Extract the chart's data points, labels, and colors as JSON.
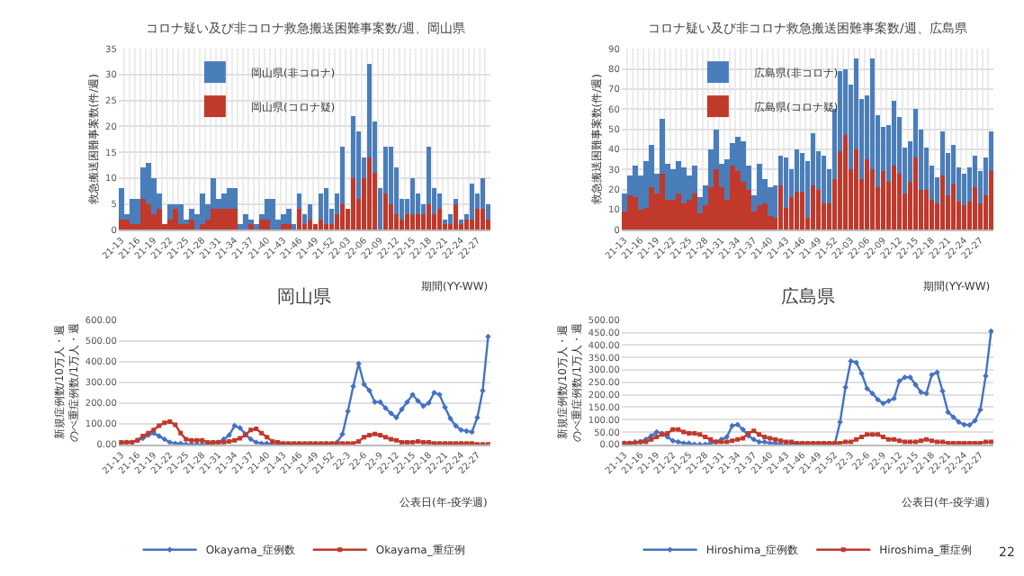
{
  "chart_data": [
    {
      "type": "bar",
      "title": "コロナ疑い及び非コロナ救急搬送困難事案数/週、岡山県",
      "xlabel": "期間(YY-WW)",
      "ylabel": "救急搬送困難事案数(件/週)",
      "stacked": true,
      "legend": "top left",
      "grid": true,
      "ylim": [
        0,
        35
      ],
      "yticks": [
        0,
        5,
        10,
        15,
        20,
        25,
        30,
        35
      ],
      "categories": [
        "21-13",
        null,
        null,
        "21-16",
        null,
        null,
        "21-19",
        null,
        null,
        "21-22",
        null,
        null,
        "21-25",
        null,
        null,
        "21-28",
        null,
        null,
        "21-31",
        null,
        null,
        "21-34",
        null,
        null,
        "21-37",
        null,
        null,
        "21-40",
        null,
        null,
        "21-43",
        null,
        null,
        "21-46",
        null,
        null,
        "21-49",
        null,
        null,
        "21-52",
        null,
        null,
        "22-03",
        null,
        null,
        "22-06",
        null,
        null,
        "22-09",
        null,
        null,
        "22-12",
        null,
        null,
        "22-15",
        null,
        null,
        "22-18",
        null,
        null,
        "22-21",
        null,
        null,
        "22-24",
        null,
        null,
        "22-27",
        null,
        null
      ],
      "series": [
        {
          "name": "岡山県(コロナ疑)",
          "color": "#c0392b",
          "values": [
            2,
            2,
            1,
            1,
            6,
            5,
            3,
            4,
            1,
            2,
            4,
            1,
            1,
            2,
            0,
            1,
            2,
            4,
            4,
            4,
            4,
            4,
            0,
            0,
            1,
            0,
            2,
            2,
            0,
            0,
            1,
            1,
            0,
            4,
            1,
            2,
            1,
            2,
            1,
            1,
            3,
            5,
            4,
            10,
            6,
            10,
            14,
            11,
            0,
            7,
            5,
            3,
            2,
            3,
            3,
            3,
            3,
            5,
            3,
            4,
            1,
            1,
            5,
            1,
            2,
            2,
            4,
            4,
            2
          ]
        },
        {
          "name": "岡山県(非コロナ)",
          "color": "#4a7ebb",
          "values": [
            6,
            1,
            5,
            5,
            6,
            8,
            7,
            3,
            0,
            3,
            1,
            4,
            1,
            2,
            3,
            6,
            3,
            6,
            2,
            3,
            4,
            4,
            1,
            3,
            1,
            1,
            1,
            4,
            6,
            2,
            2,
            3,
            1,
            3,
            2,
            3,
            0,
            5,
            7,
            3,
            4,
            11,
            0,
            12,
            13,
            4,
            18,
            10,
            8,
            9,
            11,
            9,
            4,
            3,
            7,
            4,
            2,
            11,
            5,
            3,
            1,
            2,
            1,
            1,
            1,
            7,
            3,
            6,
            3
          ]
        }
      ]
    },
    {
      "type": "bar",
      "title": "コロナ疑い及び非コロナ救急搬送困難事案数/週、広島県",
      "xlabel": "期間(YY-WW)",
      "ylabel": "救急搬送困難事案数(件/週)",
      "stacked": true,
      "legend": "top left",
      "grid": true,
      "ylim": [
        0,
        90
      ],
      "yticks": [
        0,
        10,
        20,
        30,
        40,
        50,
        60,
        70,
        80,
        90
      ],
      "categories": [
        "21-13",
        null,
        null,
        "21-16",
        null,
        null,
        "21-19",
        null,
        null,
        "21-22",
        null,
        null,
        "21-25",
        null,
        null,
        "21-28",
        null,
        null,
        "21-31",
        null,
        null,
        "21-34",
        null,
        null,
        "21-37",
        null,
        null,
        "21-40",
        null,
        null,
        "21-43",
        null,
        null,
        "21-46",
        null,
        null,
        "21-49",
        null,
        null,
        "21-52",
        null,
        null,
        "22-03",
        null,
        null,
        "22-06",
        null,
        null,
        "22-09",
        null,
        null,
        "22-12",
        null,
        null,
        "22-15",
        null,
        null,
        "22-18",
        null,
        null,
        "22-21",
        null,
        null,
        "22-24",
        null,
        null,
        "22-27",
        null,
        null
      ],
      "series": [
        {
          "name": "広島県(コロナ疑)",
          "color": "#c0392b",
          "values": [
            9,
            17,
            16,
            10,
            11,
            21,
            18,
            28,
            15,
            15,
            18,
            13,
            15,
            18,
            8,
            12,
            21,
            30,
            21,
            15,
            32,
            29,
            24,
            20,
            9,
            12,
            13,
            7,
            6,
            22,
            11,
            16,
            19,
            19,
            6,
            22,
            20,
            13,
            13,
            25,
            39,
            47,
            30,
            40,
            25,
            35,
            30,
            21,
            29,
            24,
            32,
            28,
            18,
            24,
            36,
            20,
            20,
            15,
            13,
            27,
            17,
            23,
            14,
            12,
            14,
            21,
            13,
            17,
            29
          ]
        },
        {
          "name": "広島県(非コロナ)",
          "color": "#4a7ebb",
          "values": [
            9,
            10,
            16,
            17,
            23,
            21,
            10,
            27,
            18,
            15,
            16,
            18,
            12,
            14,
            8,
            10,
            19,
            20,
            12,
            20,
            11,
            17,
            20,
            12,
            8,
            21,
            12,
            14,
            16,
            15,
            25,
            14,
            21,
            19,
            28,
            26,
            19,
            24,
            17,
            35,
            40,
            33,
            42,
            45,
            40,
            32,
            55,
            36,
            22,
            28,
            32,
            28,
            23,
            20,
            24,
            30,
            21,
            17,
            13,
            22,
            21,
            19,
            17,
            16,
            17,
            16,
            16,
            19,
            20
          ]
        }
      ]
    },
    {
      "type": "line",
      "title": "岡山県",
      "xlabel": "公表日(年-疫学週)",
      "ylabel": "新規症例数/10万人・週のべ重症例数/1万人・週",
      "legend": "bottom",
      "grid": "y",
      "ylim": [
        0,
        600
      ],
      "yticks": [
        {
          "value": 0,
          "label": "0.00"
        },
        {
          "value": 100,
          "label": "100.00"
        },
        {
          "value": 200,
          "label": "200.00"
        },
        {
          "value": 300,
          "label": "300.00"
        },
        {
          "value": 400,
          "label": "400.00"
        },
        {
          "value": 500,
          "label": "500.00"
        },
        {
          "value": 600,
          "label": "600.00"
        }
      ],
      "categories": [
        "21-13",
        null,
        null,
        "21-16",
        null,
        null,
        "21-19",
        null,
        null,
        "21-22",
        null,
        null,
        "21-25",
        null,
        null,
        "21-28",
        null,
        null,
        "21-31",
        null,
        null,
        "21-34",
        null,
        null,
        "21-37",
        null,
        null,
        "21-40",
        null,
        null,
        "21-43",
        null,
        null,
        "21-46",
        null,
        null,
        "21-49",
        null,
        null,
        "21-52",
        null,
        null,
        "22-3",
        null,
        null,
        "22-6",
        null,
        null,
        "22-9",
        null,
        null,
        "22-12",
        null,
        null,
        "22-15",
        null,
        null,
        "22-18",
        null,
        null,
        "22-21",
        null,
        null,
        "22-24",
        null,
        null,
        "22-27",
        null,
        null
      ],
      "series": [
        {
          "name": "Okayama_症例数",
          "color": "#4472c4",
          "marker": "diamond",
          "values": [
            5,
            10,
            10,
            20,
            30,
            45,
            55,
            40,
            25,
            10,
            5,
            5,
            0,
            0,
            0,
            0,
            0,
            5,
            10,
            25,
            45,
            90,
            80,
            50,
            25,
            10,
            5,
            5,
            0,
            0,
            0,
            0,
            0,
            0,
            0,
            0,
            0,
            0,
            0,
            0,
            10,
            50,
            160,
            280,
            390,
            290,
            260,
            205,
            205,
            175,
            150,
            130,
            170,
            205,
            240,
            210,
            185,
            200,
            250,
            240,
            180,
            125,
            90,
            70,
            65,
            60,
            130,
            260,
            520
          ]
        },
        {
          "name": "Okayama_重症例",
          "color": "#c0392b",
          "marker": "square",
          "values": [
            10,
            10,
            10,
            20,
            40,
            55,
            70,
            90,
            105,
            110,
            95,
            55,
            25,
            20,
            20,
            20,
            10,
            10,
            10,
            10,
            15,
            20,
            30,
            45,
            70,
            75,
            55,
            35,
            15,
            10,
            5,
            5,
            5,
            5,
            5,
            5,
            5,
            5,
            5,
            5,
            5,
            5,
            5,
            5,
            15,
            35,
            45,
            50,
            45,
            35,
            25,
            20,
            10,
            10,
            10,
            15,
            10,
            10,
            5,
            5,
            5,
            5,
            5,
            5,
            5,
            5,
            0,
            0,
            0
          ]
        }
      ]
    },
    {
      "type": "line",
      "title": "広島県",
      "xlabel": "公表日(年-疫学週)",
      "ylabel": "新規症例数/10万人・週のべ重症例数/1万人・週",
      "legend": "bottom",
      "grid": "y",
      "ylim": [
        0,
        500
      ],
      "yticks": [
        {
          "value": 0,
          "label": "0.00"
        },
        {
          "value": 50,
          "label": "50.00"
        },
        {
          "value": 100,
          "label": "100.00"
        },
        {
          "value": 150,
          "label": "150.00"
        },
        {
          "value": 200,
          "label": "200.00"
        },
        {
          "value": 250,
          "label": "250.00"
        },
        {
          "value": 300,
          "label": "300.00"
        },
        {
          "value": 350,
          "label": "350.00"
        },
        {
          "value": 400,
          "label": "400.00"
        },
        {
          "value": 450,
          "label": "450.00"
        },
        {
          "value": 500,
          "label": "500.00"
        }
      ],
      "annotations": [
        "22"
      ],
      "categories": [
        "21-13",
        null,
        null,
        "21-16",
        null,
        null,
        "21-19",
        null,
        null,
        "21-22",
        null,
        null,
        "21-25",
        null,
        null,
        "21-28",
        null,
        null,
        "21-31",
        null,
        null,
        "21-34",
        null,
        null,
        "21-37",
        null,
        null,
        "21-40",
        null,
        null,
        "21-43",
        null,
        null,
        "21-46",
        null,
        null,
        "21-49",
        null,
        null,
        "21-52",
        null,
        null,
        "22-3",
        null,
        null,
        "22-6",
        null,
        null,
        "22-9",
        null,
        null,
        "22-12",
        null,
        null,
        "22-15",
        null,
        null,
        "22-18",
        null,
        null,
        "22-21",
        null,
        null,
        "22-24",
        null,
        null,
        "22-27",
        null,
        null
      ],
      "series": [
        {
          "name": "Hiroshima_症例数",
          "color": "#4472c4",
          "marker": "diamond",
          "values": [
            5,
            5,
            10,
            10,
            20,
            35,
            50,
            45,
            30,
            15,
            10,
            5,
            5,
            0,
            0,
            0,
            5,
            10,
            20,
            30,
            75,
            80,
            60,
            35,
            20,
            10,
            10,
            5,
            5,
            0,
            0,
            0,
            0,
            0,
            0,
            0,
            0,
            0,
            0,
            0,
            90,
            230,
            335,
            330,
            285,
            225,
            205,
            180,
            165,
            175,
            185,
            255,
            270,
            270,
            240,
            210,
            205,
            280,
            290,
            215,
            130,
            110,
            90,
            80,
            78,
            95,
            140,
            275,
            455
          ]
        },
        {
          "name": "Hiroshima_重症例",
          "color": "#c0392b",
          "marker": "square",
          "values": [
            5,
            5,
            5,
            10,
            10,
            20,
            30,
            40,
            45,
            60,
            60,
            50,
            45,
            45,
            40,
            30,
            20,
            10,
            10,
            10,
            15,
            20,
            25,
            45,
            55,
            40,
            30,
            25,
            20,
            15,
            10,
            10,
            5,
            5,
            5,
            5,
            5,
            5,
            5,
            5,
            5,
            10,
            10,
            20,
            30,
            40,
            40,
            40,
            30,
            20,
            20,
            15,
            10,
            10,
            10,
            15,
            20,
            15,
            10,
            10,
            5,
            5,
            5,
            5,
            5,
            5,
            5,
            10,
            10
          ]
        }
      ]
    }
  ]
}
